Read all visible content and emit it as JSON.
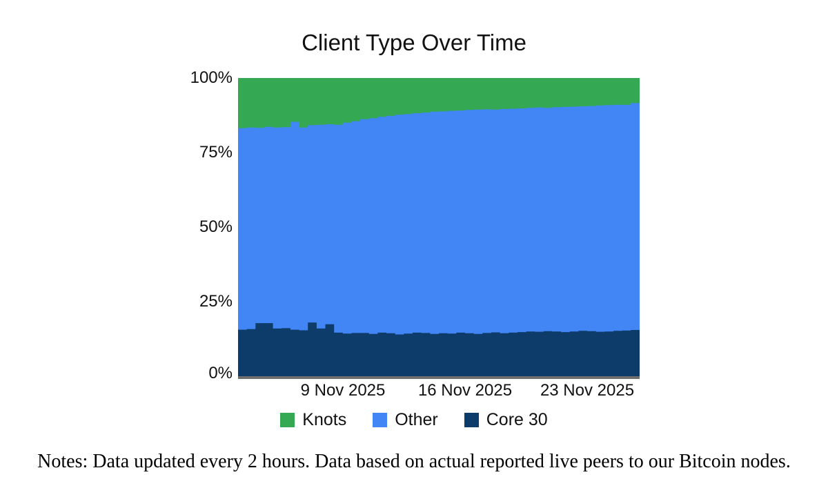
{
  "page": {
    "note": "Notes: Data updated every 2 hours. Data based on actual reported live peers to our Bitcoin nodes."
  },
  "chart_data": {
    "type": "area",
    "stacked": true,
    "title": "Client Type Over Time",
    "ylim": [
      0,
      100
    ],
    "y_ticks": [
      "100%",
      "75%",
      "50%",
      "25%",
      "0%"
    ],
    "x_ticks": [
      {
        "label": "9 Nov 2025",
        "day": 6
      },
      {
        "label": "16 Nov 2025",
        "day": 13
      },
      {
        "label": "23 Nov 2025",
        "day": 20
      }
    ],
    "x_unit": "days since 3 Nov 2025 (sampled every 12 h; source updates every 2 h)",
    "x_range_days": [
      0,
      23
    ],
    "x": [
      0,
      0.5,
      1,
      1.5,
      2,
      2.5,
      3,
      3.5,
      4,
      4.5,
      5,
      5.5,
      6,
      6.5,
      7,
      7.5,
      8,
      8.5,
      9,
      9.5,
      10,
      10.5,
      11,
      11.5,
      12,
      12.5,
      13,
      13.5,
      14,
      14.5,
      15,
      15.5,
      16,
      16.5,
      17,
      17.5,
      18,
      18.5,
      19,
      19.5,
      20,
      20.5,
      21,
      21.5,
      22,
      22.5,
      23
    ],
    "series": [
      {
        "name": "Knots",
        "color": "#34a853",
        "values": [
          16.8,
          16.6,
          16.7,
          16.4,
          16.6,
          16.5,
          14.7,
          16.6,
          15.8,
          15.7,
          15.5,
          15.7,
          15.0,
          14.5,
          13.8,
          13.5,
          13.0,
          12.7,
          12.3,
          12.1,
          11.8,
          11.6,
          11.3,
          11.2,
          11.0,
          10.9,
          10.7,
          10.6,
          10.5,
          10.6,
          10.4,
          10.3,
          10.2,
          10.0,
          9.9,
          10.0,
          9.8,
          9.7,
          9.6,
          9.5,
          9.4,
          9.2,
          9.1,
          9.0,
          9.0,
          8.4,
          8.4
        ]
      },
      {
        "name": "Other",
        "color": "#4285f4",
        "values": [
          67.6,
          67.6,
          65.5,
          65.8,
          67.4,
          67.4,
          69.7,
          68.0,
          66.2,
          68.3,
          67.1,
          69.7,
          70.7,
          71.0,
          71.7,
          72.3,
          72.4,
          72.9,
          73.7,
          73.6,
          73.6,
          73.9,
          74.5,
          74.4,
          74.7,
          74.5,
          74.9,
          75.2,
          75.0,
          74.7,
          75.2,
          75.1,
          75.0,
          75.0,
          75.2,
          74.9,
          75.2,
          75.5,
          75.4,
          75.3,
          75.5,
          75.9,
          75.9,
          75.8,
          75.7,
          76.1,
          76.0
        ]
      },
      {
        "name": "Core 30",
        "color": "#0d3c6a",
        "values": [
          15.6,
          15.8,
          17.8,
          17.8,
          16.0,
          16.1,
          15.6,
          15.4,
          18.0,
          16.0,
          17.4,
          14.6,
          14.3,
          14.5,
          14.5,
          14.2,
          14.6,
          14.4,
          14.0,
          14.3,
          14.6,
          14.5,
          14.2,
          14.4,
          14.3,
          14.6,
          14.4,
          14.2,
          14.5,
          14.7,
          14.4,
          14.6,
          14.8,
          15.0,
          14.9,
          15.1,
          15.0,
          14.8,
          15.0,
          15.2,
          15.1,
          14.9,
          15.0,
          15.2,
          15.3,
          15.5,
          15.6
        ]
      }
    ],
    "stack_order_bottom_to_top": [
      "Core 30",
      "Other",
      "Knots"
    ],
    "legend": [
      {
        "label": "Knots",
        "color": "#34a853"
      },
      {
        "label": "Other",
        "color": "#4285f4"
      },
      {
        "label": "Core 30",
        "color": "#0d3c6a"
      }
    ],
    "grid": false,
    "legend_position": "bottom",
    "axis_line_color": "#6e6e6e"
  }
}
